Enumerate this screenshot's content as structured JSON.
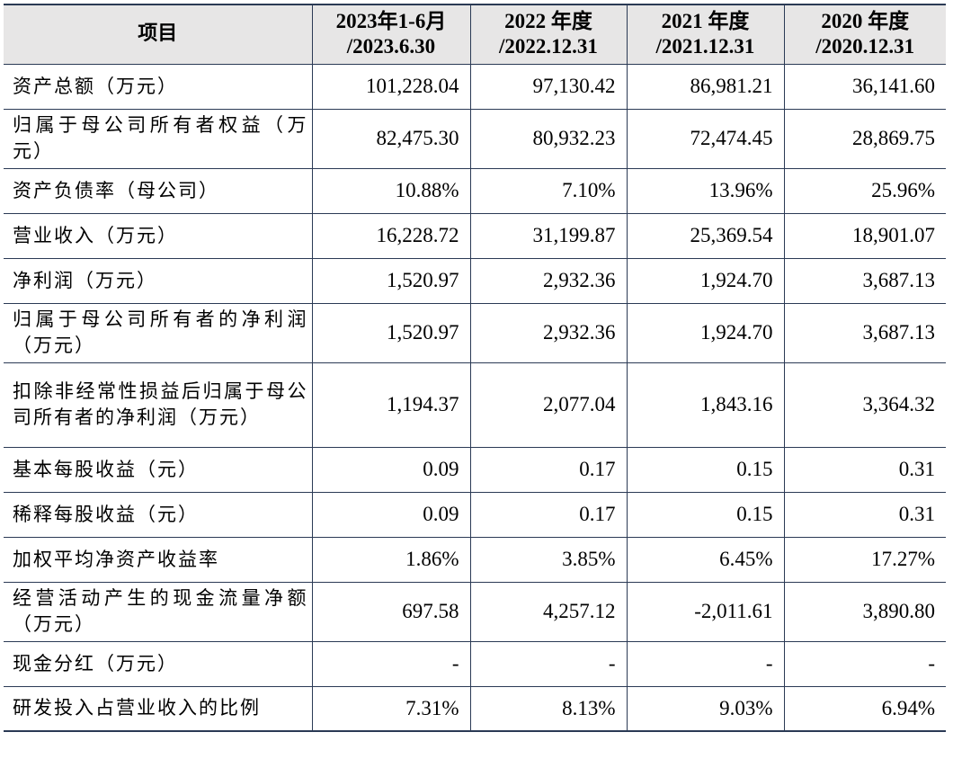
{
  "table": {
    "headers": [
      {
        "line1": "项目",
        "line2": ""
      },
      {
        "line1": "2023年1-6月",
        "line2": "/2023.6.30"
      },
      {
        "line1": "2022 年度",
        "line2": "/2022.12.31"
      },
      {
        "line1": "2021 年度",
        "line2": "/2021.12.31"
      },
      {
        "line1": "2020 年度",
        "line2": "/2020.12.31"
      }
    ],
    "rows": [
      {
        "label": "资产总额（万元）",
        "values": [
          "101,228.04",
          "97,130.42",
          "86,981.21",
          "36,141.60"
        ]
      },
      {
        "label": "归属于母公司所有者权益（万元）",
        "values": [
          "82,475.30",
          "80,932.23",
          "72,474.45",
          "28,869.75"
        ]
      },
      {
        "label": "资产负债率（母公司）",
        "values": [
          "10.88%",
          "7.10%",
          "13.96%",
          "25.96%"
        ]
      },
      {
        "label": "营业收入（万元）",
        "values": [
          "16,228.72",
          "31,199.87",
          "25,369.54",
          "18,901.07"
        ]
      },
      {
        "label": "净利润（万元）",
        "values": [
          "1,520.97",
          "2,932.36",
          "1,924.70",
          "3,687.13"
        ]
      },
      {
        "label": "归属于母公司所有者的净利润（万元）",
        "values": [
          "1,520.97",
          "2,932.36",
          "1,924.70",
          "3,687.13"
        ]
      },
      {
        "label": "扣除非经常性损益后归属于母公司所有者的净利润（万元）",
        "values": [
          "1,194.37",
          "2,077.04",
          "1,843.16",
          "3,364.32"
        ]
      },
      {
        "label": "基本每股收益（元）",
        "values": [
          "0.09",
          "0.17",
          "0.15",
          "0.31"
        ]
      },
      {
        "label": "稀释每股收益（元）",
        "values": [
          "0.09",
          "0.17",
          "0.15",
          "0.31"
        ]
      },
      {
        "label": "加权平均净资产收益率",
        "values": [
          "1.86%",
          "3.85%",
          "6.45%",
          "17.27%"
        ]
      },
      {
        "label": "经营活动产生的现金流量净额（万元）",
        "values": [
          "697.58",
          "4,257.12",
          "-2,011.61",
          "3,890.80"
        ]
      },
      {
        "label": "现金分红（万元）",
        "values": [
          "-",
          "-",
          "-",
          "-"
        ]
      },
      {
        "label": "研发投入占营业收入的比例",
        "values": [
          "7.31%",
          "8.13%",
          "9.03%",
          "6.94%"
        ]
      }
    ]
  }
}
